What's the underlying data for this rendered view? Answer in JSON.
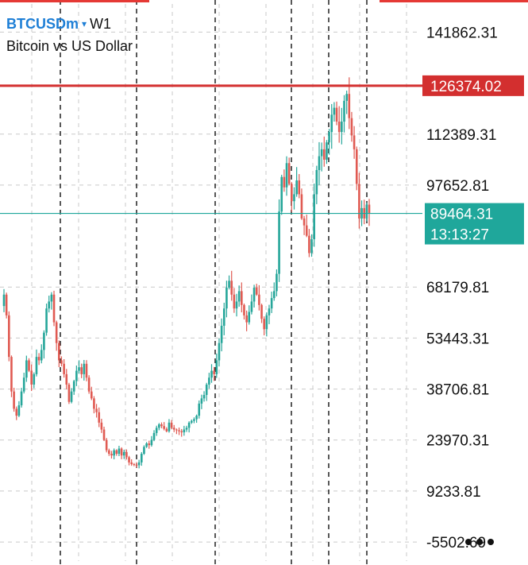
{
  "symbol": {
    "ticker": "BTCUSDm",
    "caret": "▾",
    "timeframe": "W1",
    "description": "Bitcoin vs US Dollar"
  },
  "colors": {
    "up": "#26a69a",
    "down": "#e05a52",
    "current_price": "#1fa79b",
    "level_line": "#d32f2f",
    "grid": "#c9c9c9",
    "axis_text": "#111111"
  },
  "icons": {
    "more": "more-horizontal-icon"
  },
  "chart_data": {
    "type": "candlestick",
    "ylim": [
      -11000,
      150000
    ],
    "price_axis_labels": [
      "141862.31",
      "112389.31",
      "97652.81",
      "68179.81",
      "53443.31",
      "38706.81",
      "23970.31",
      "9233.81",
      "-5502.69"
    ],
    "horizontal_level": {
      "label": "126374.02",
      "value": 126374.02
    },
    "current_price": {
      "label": "89464.31",
      "value": 89464.31,
      "countdown": "13:13:27"
    },
    "period_separators": 6,
    "close_series": [
      66000,
      60000,
      48000,
      38000,
      33000,
      31000,
      34000,
      38000,
      42000,
      47000,
      44000,
      40000,
      43000,
      48000,
      47000,
      50000,
      55000,
      62000,
      64000,
      66000,
      58000,
      52000,
      47000,
      46000,
      43000,
      40000,
      35000,
      38000,
      41000,
      44000,
      45000,
      43000,
      46000,
      42000,
      38000,
      36000,
      33000,
      32000,
      29000,
      27000,
      24000,
      21000,
      20000,
      19500,
      21000,
      20000,
      21500,
      19500,
      20500,
      19000,
      17500,
      17000,
      16800,
      16700,
      17500,
      20000,
      22000,
      23000,
      22500,
      24000,
      26000,
      27500,
      28500,
      28000,
      27200,
      26500,
      29000,
      27500,
      27000,
      26800,
      26500,
      26200,
      27000,
      27500,
      29000,
      29500,
      30000,
      31000,
      34500,
      36000,
      37000,
      40000,
      42000,
      44000,
      43000,
      47000,
      52000,
      57000,
      62000,
      68000,
      70000,
      66000,
      62000,
      64000,
      67000,
      63000,
      60000,
      58000,
      61000,
      64000,
      68000,
      66000,
      63000,
      59000,
      56000,
      60000,
      62000,
      65000,
      67000,
      72000,
      90000,
      100000,
      97000,
      104000,
      98000,
      93000,
      95000,
      99000,
      95000,
      88000,
      86000,
      83000,
      78000,
      82000,
      95000,
      102000,
      106000,
      108000,
      105000,
      110000,
      113000,
      118000,
      120000,
      116000,
      113000,
      116000,
      122000,
      124000,
      117000,
      112000,
      108000,
      98000,
      88000,
      91000,
      88000,
      92000,
      89464
    ]
  }
}
